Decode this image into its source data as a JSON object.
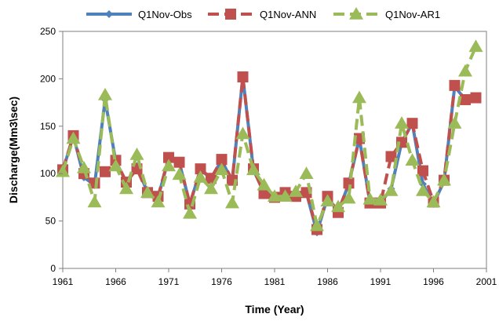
{
  "chart_data": {
    "type": "line",
    "title": "",
    "xlabel": "Time (Year)",
    "ylabel": "Discharge(Mm3\\sec)",
    "xlim": [
      1961,
      2001
    ],
    "ylim": [
      0,
      250
    ],
    "xticks": [
      1961,
      1966,
      1971,
      1976,
      1981,
      1986,
      1991,
      1996,
      2001
    ],
    "yticks": [
      0,
      50,
      100,
      150,
      200,
      250
    ],
    "grid": false,
    "legend": "top",
    "x": [
      1961,
      1962,
      1963,
      1964,
      1965,
      1966,
      1967,
      1968,
      1969,
      1970,
      1971,
      1972,
      1973,
      1974,
      1975,
      1976,
      1977,
      1978,
      1979,
      1980,
      1981,
      1982,
      1983,
      1984,
      1985,
      1986,
      1987,
      1988,
      1989,
      1990,
      1991,
      1992,
      1993,
      1994,
      1995,
      1996,
      1997,
      1998,
      1999,
      2000
    ],
    "series": [
      {
        "name": "Q1Nov-Obs",
        "color": "#4F81BD",
        "marker": "diamond",
        "dash": false,
        "values": [
          103,
          140,
          96,
          88,
          178,
          113,
          91,
          108,
          80,
          75,
          116,
          112,
          68,
          104,
          95,
          114,
          92,
          202,
          104,
          80,
          75,
          80,
          76,
          80,
          38,
          75,
          60,
          89,
          137,
          70,
          69,
          84,
          133,
          153,
          89,
          68,
          92,
          192,
          178,
          180
        ]
      },
      {
        "name": "Q1Nov-ANN",
        "color": "#C0504D",
        "marker": "square",
        "dash": true,
        "values": [
          104,
          140,
          100,
          90,
          102,
          114,
          91,
          105,
          80,
          76,
          117,
          112,
          68,
          105,
          95,
          115,
          93,
          202,
          105,
          79,
          75,
          80,
          76,
          80,
          41,
          76,
          59,
          90,
          137,
          69,
          69,
          118,
          133,
          153,
          103,
          70,
          93,
          193,
          178,
          180
        ]
      },
      {
        "name": "Q1Nov-AR1",
        "color": "#9BBB59",
        "marker": "triangle",
        "dash": true,
        "values": [
          102,
          137,
          106,
          70,
          183,
          108,
          84,
          120,
          80,
          70,
          108,
          99,
          58,
          96,
          84,
          104,
          69,
          142,
          104,
          88,
          76,
          76,
          81,
          100,
          45,
          71,
          65,
          74,
          180,
          73,
          72,
          82,
          153,
          114,
          82,
          70,
          93,
          153,
          208,
          234
        ]
      }
    ]
  }
}
